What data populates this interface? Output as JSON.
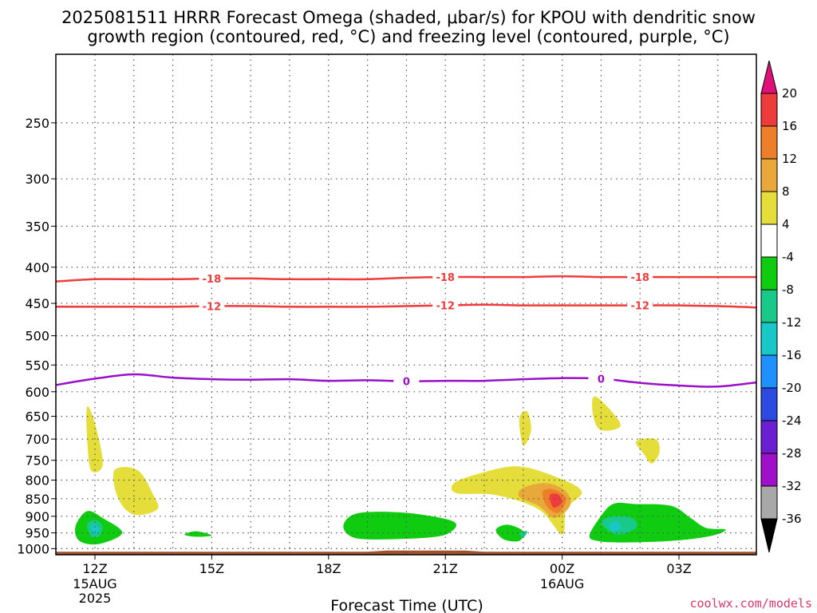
{
  "title_line1": "2025081511 HRRR Forecast Omega (shaded, μbar/s) for KPOU with dendritic snow",
  "title_line2": "growth region (contoured, red, °C) and freezing level (contoured, purple, °C)",
  "credit": "coolwx.com/models",
  "chart_data": {
    "type": "time-height cross section (filled contour)",
    "title": "2025081511 HRRR Forecast Omega (shaded, μbar/s) for KPOU with dendritic snow growth region (contoured, red, °C) and freezing level (contoured, purple, °C)",
    "xlabel": "Forecast Time (UTC)",
    "ylabel": "",
    "x_ticks": [
      {
        "hour": 1,
        "label": "12Z",
        "sub1": "15AUG",
        "sub2": "2025"
      },
      {
        "hour": 4,
        "label": "15Z",
        "sub1": "",
        "sub2": ""
      },
      {
        "hour": 7,
        "label": "18Z",
        "sub1": "",
        "sub2": ""
      },
      {
        "hour": 10,
        "label": "21Z",
        "sub1": "",
        "sub2": ""
      },
      {
        "hour": 13,
        "label": "00Z",
        "sub1": "16AUG",
        "sub2": ""
      },
      {
        "hour": 16,
        "label": "03Z",
        "sub1": "",
        "sub2": ""
      }
    ],
    "x_range_hours": [
      0,
      18
    ],
    "y_scale": "log-pressure (hPa, inverted)",
    "y_range_hpa": [
      1020,
      200
    ],
    "y_ticks": [
      250,
      300,
      350,
      400,
      450,
      500,
      550,
      600,
      650,
      700,
      750,
      800,
      850,
      900,
      950,
      1000
    ],
    "grid": true,
    "colorbar": {
      "units": "μbar/s",
      "labels": [
        "20",
        "16",
        "12",
        "8",
        "4",
        "-4",
        "-8",
        "-12",
        "-16",
        "-20",
        "-24",
        "-28",
        "-32",
        "-36"
      ],
      "bins": [
        {
          "range": "16 to 20",
          "color": "#ee3b3b"
        },
        {
          "range": "12 to 16",
          "color": "#ee7f2a"
        },
        {
          "range": "8 to 12",
          "color": "#e8a93a"
        },
        {
          "range": "4 to 8",
          "color": "#e5dd3a"
        },
        {
          "range": "-4 to 4",
          "color": "#ffffff"
        },
        {
          "range": "-8 to -4",
          "color": "#10cc10"
        },
        {
          "range": "-12 to -8",
          "color": "#18c98a"
        },
        {
          "range": "-16 to -12",
          "color": "#18c8c8"
        },
        {
          "range": "-20 to -16",
          "color": "#1e90ff"
        },
        {
          "range": "-24 to -20",
          "color": "#2a4ae0"
        },
        {
          "range": "-28 to -24",
          "color": "#6a1fd0"
        },
        {
          "range": "-32 to -28",
          "color": "#a010c8"
        },
        {
          "range": "-36 to -32",
          "color": "#a8a8a8"
        }
      ],
      "over_color": "#e0107a",
      "under_color": "#000000"
    },
    "contours": [
      {
        "label": "-18",
        "color": "#ee3b3b",
        "level_hpa": [
          [
            0,
            419
          ],
          [
            1,
            416
          ],
          [
            2,
            416
          ],
          [
            3,
            416
          ],
          [
            4,
            415
          ],
          [
            5,
            415
          ],
          [
            6,
            416
          ],
          [
            7,
            416
          ],
          [
            8,
            416
          ],
          [
            9,
            414
          ],
          [
            10,
            413
          ],
          [
            11,
            413
          ],
          [
            12,
            413
          ],
          [
            13,
            412
          ],
          [
            14,
            413
          ],
          [
            15,
            413
          ],
          [
            16,
            413
          ],
          [
            17,
            413
          ],
          [
            18,
            413
          ]
        ],
        "label_hours": [
          4.0,
          10.0,
          15.0
        ]
      },
      {
        "label": "-12",
        "color": "#ee3b3b",
        "level_hpa": [
          [
            0,
            455
          ],
          [
            1,
            455
          ],
          [
            2,
            455
          ],
          [
            3,
            455
          ],
          [
            4,
            454
          ],
          [
            5,
            454
          ],
          [
            6,
            455
          ],
          [
            7,
            455
          ],
          [
            8,
            455
          ],
          [
            9,
            454
          ],
          [
            10,
            453
          ],
          [
            11,
            452
          ],
          [
            12,
            453
          ],
          [
            13,
            453
          ],
          [
            14,
            453
          ],
          [
            15,
            453
          ],
          [
            16,
            453
          ],
          [
            17,
            454
          ],
          [
            18,
            456
          ]
        ],
        "label_hours": [
          4.0,
          10.0,
          15.0
        ]
      },
      {
        "label": "0",
        "color": "#9a0fc8",
        "level_hpa": [
          [
            0,
            587
          ],
          [
            1,
            575
          ],
          [
            2,
            567
          ],
          [
            3,
            573
          ],
          [
            4,
            576
          ],
          [
            5,
            577
          ],
          [
            6,
            576
          ],
          [
            7,
            579
          ],
          [
            8,
            578
          ],
          [
            9,
            580
          ],
          [
            10,
            579
          ],
          [
            11,
            579
          ],
          [
            12,
            576
          ],
          [
            13,
            574
          ],
          [
            14,
            575
          ],
          [
            15,
            583
          ],
          [
            16,
            588
          ],
          [
            17,
            590
          ],
          [
            18,
            582
          ]
        ],
        "label_hours": [
          9.0,
          14.0
        ]
      }
    ],
    "omega_features": [
      {
        "bin": "4 to 8",
        "desc": "updraft column near 12Z",
        "poly": [
          [
            0.8,
            630
          ],
          [
            1.0,
            665
          ],
          [
            1.2,
            760
          ],
          [
            0.9,
            775
          ],
          [
            0.8,
            700
          ]
        ]
      },
      {
        "bin": "4 to 8",
        "desc": "13Z lobe",
        "poly": [
          [
            1.5,
            775
          ],
          [
            2.1,
            775
          ],
          [
            2.5,
            840
          ],
          [
            2.6,
            880
          ],
          [
            2.0,
            895
          ],
          [
            1.6,
            850
          ]
        ]
      },
      {
        "bin": "-8 to -4",
        "desc": "12Z downdraft",
        "poly": [
          [
            0.5,
            930
          ],
          [
            0.8,
            885
          ],
          [
            1.2,
            905
          ],
          [
            1.7,
            950
          ],
          [
            1.1,
            985
          ],
          [
            0.6,
            975
          ]
        ]
      },
      {
        "bin": "-12 to -8",
        "desc": "12Z core",
        "poly": [
          [
            0.8,
            925
          ],
          [
            1.0,
            910
          ],
          [
            1.2,
            930
          ],
          [
            1.1,
            960
          ],
          [
            0.9,
            960
          ]
        ]
      },
      {
        "bin": "-16 to -12",
        "desc": "12Z inner core",
        "poly": [
          [
            0.9,
            935
          ],
          [
            1.0,
            925
          ],
          [
            1.1,
            940
          ],
          [
            1.0,
            955
          ]
        ]
      },
      {
        "bin": "-8 to -4",
        "desc": "14Z sliver",
        "poly": [
          [
            3.3,
            955
          ],
          [
            3.6,
            945
          ],
          [
            4.0,
            958
          ],
          [
            3.6,
            962
          ]
        ]
      },
      {
        "bin": "-8 to -4",
        "desc": "19-21Z band",
        "poly": [
          [
            7.4,
            920
          ],
          [
            7.8,
            890
          ],
          [
            9.0,
            890
          ],
          [
            10.2,
            915
          ],
          [
            10.1,
            950
          ],
          [
            9.5,
            965
          ],
          [
            8.0,
            970
          ],
          [
            7.5,
            955
          ]
        ]
      },
      {
        "bin": "4 to 8",
        "desc": "23Z thin",
        "poly": [
          [
            11.9,
            655
          ],
          [
            12.1,
            640
          ],
          [
            12.2,
            680
          ],
          [
            12.0,
            715
          ]
        ]
      },
      {
        "bin": "4 to 8",
        "desc": "23Z-01Z lobe",
        "poly": [
          [
            10.2,
            810
          ],
          [
            10.7,
            788
          ],
          [
            11.8,
            765
          ],
          [
            12.8,
            790
          ],
          [
            13.5,
            830
          ],
          [
            13.1,
            880
          ],
          [
            13.0,
            955
          ],
          [
            12.4,
            880
          ],
          [
            11.3,
            840
          ],
          [
            10.3,
            835
          ]
        ]
      },
      {
        "bin": "8 to 12",
        "desc": "00Z",
        "poly": [
          [
            12.0,
            820
          ],
          [
            12.6,
            808
          ],
          [
            13.1,
            830
          ],
          [
            13.2,
            870
          ],
          [
            12.8,
            905
          ],
          [
            12.4,
            870
          ],
          [
            11.9,
            845
          ]
        ]
      },
      {
        "bin": "12 to 16",
        "desc": "00Z core",
        "poly": [
          [
            12.5,
            830
          ],
          [
            12.8,
            825
          ],
          [
            13.1,
            850
          ],
          [
            12.9,
            890
          ],
          [
            12.6,
            870
          ]
        ]
      },
      {
        "bin": "16 to 20",
        "desc": "00Z inner",
        "poly": [
          [
            12.7,
            838
          ],
          [
            12.9,
            838
          ],
          [
            13.0,
            860
          ],
          [
            12.8,
            875
          ],
          [
            12.7,
            858
          ]
        ]
      },
      {
        "bin": "-8 to -4",
        "desc": "23Z small",
        "poly": [
          [
            11.3,
            940
          ],
          [
            11.6,
            925
          ],
          [
            12.0,
            945
          ],
          [
            11.9,
            975
          ],
          [
            11.5,
            970
          ]
        ]
      },
      {
        "bin": "-12 to -8",
        "desc": "23Z core",
        "poly": [
          [
            11.9,
            950
          ],
          [
            12.1,
            945
          ],
          [
            12.0,
            965
          ]
        ]
      },
      {
        "bin": "4 to 8",
        "desc": "01Z top",
        "poly": [
          [
            13.8,
            610
          ],
          [
            14.1,
            625
          ],
          [
            14.5,
            670
          ],
          [
            14.0,
            680
          ],
          [
            13.8,
            650
          ]
        ]
      },
      {
        "bin": "4 to 8",
        "desc": "02Z",
        "poly": [
          [
            14.9,
            705
          ],
          [
            15.4,
            700
          ],
          [
            15.5,
            730
          ],
          [
            15.3,
            758
          ],
          [
            15.1,
            735
          ]
        ]
      },
      {
        "bin": "-8 to -4",
        "desc": "01-04Z band",
        "poly": [
          [
            13.7,
            960
          ],
          [
            13.9,
            915
          ],
          [
            14.3,
            865
          ],
          [
            14.9,
            865
          ],
          [
            15.8,
            870
          ],
          [
            16.3,
            905
          ],
          [
            16.7,
            935
          ],
          [
            17.2,
            940
          ],
          [
            16.8,
            960
          ],
          [
            15.8,
            975
          ],
          [
            14.5,
            980
          ],
          [
            13.9,
            975
          ]
        ]
      },
      {
        "bin": "-12 to -8",
        "desc": "01Z core",
        "poly": [
          [
            14.0,
            920
          ],
          [
            14.3,
            900
          ],
          [
            14.8,
            905
          ],
          [
            14.9,
            935
          ],
          [
            14.4,
            955
          ]
        ]
      },
      {
        "bin": "-16 to -12",
        "desc": "01Z inner",
        "poly": [
          [
            14.2,
            925
          ],
          [
            14.4,
            915
          ],
          [
            14.5,
            935
          ],
          [
            14.3,
            945
          ]
        ]
      }
    ],
    "terrain": {
      "color": "#a0522d",
      "poly": [
        [
          0,
          1020
        ],
        [
          0,
          1010
        ],
        [
          8,
          1010
        ],
        [
          8.5,
          1006
        ],
        [
          10.5,
          1006
        ],
        [
          11,
          1010
        ],
        [
          18,
          1010
        ],
        [
          18,
          1020
        ]
      ]
    }
  }
}
